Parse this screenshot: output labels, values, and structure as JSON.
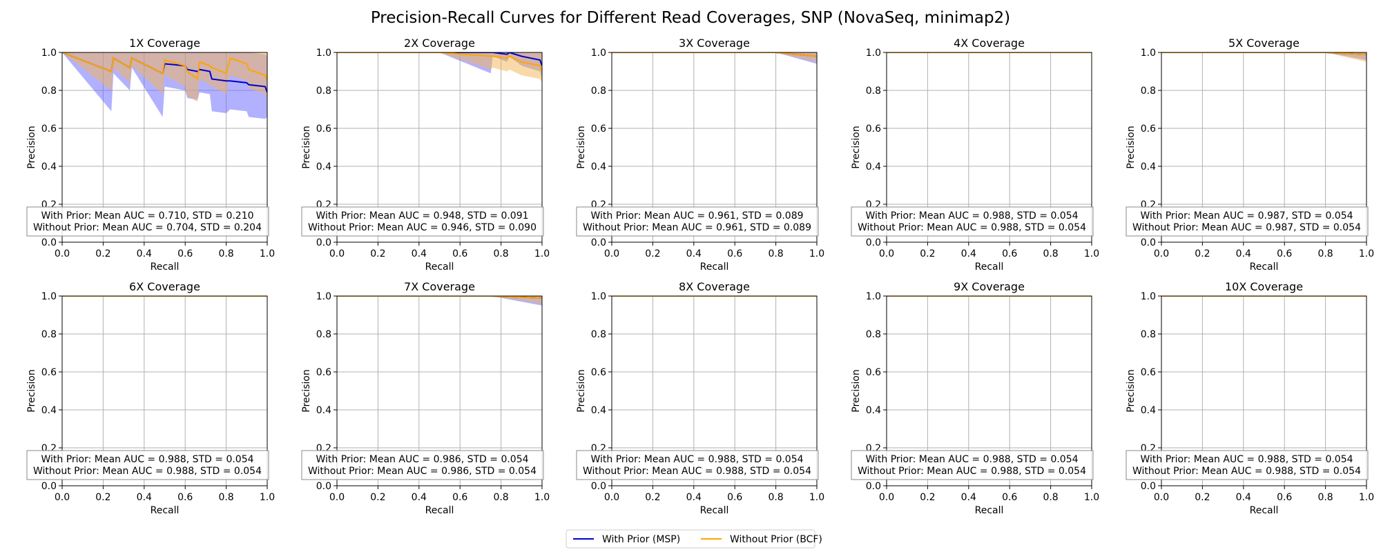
{
  "title": "Precision-Recall Curves for Different Read Coverages, SNP (NovaSeq, minimap2)",
  "legend": {
    "placement": "bottom-center",
    "entries": [
      {
        "label": "With Prior (MSP)",
        "color": "#0000cc"
      },
      {
        "label": "Without Prior (BCF)",
        "color": "#ffa500"
      }
    ]
  },
  "colors": {
    "with_prior": "#0000cc",
    "with_prior_fill": "#6464ff",
    "without_prior": "#ffa500",
    "without_prior_fill": "#f5b454",
    "grid": "#b0b0b0"
  },
  "chart_data": [
    {
      "type": "line",
      "title": "1X Coverage",
      "xlabel": "Recall",
      "ylabel": "Precision",
      "xlim": [
        0,
        1
      ],
      "ylim": [
        0,
        1
      ],
      "grid": true,
      "xticks": [
        "0.0",
        "0.2",
        "0.4",
        "0.6",
        "0.8",
        "1.0"
      ],
      "yticks": [
        "0.0",
        "0.2",
        "0.4",
        "0.6",
        "0.8",
        "1.0"
      ],
      "annotation": [
        "With Prior: Mean AUC = 0.710, STD = 0.210",
        "Without Prior: Mean AUC = 0.704, STD = 0.204"
      ],
      "series": [
        {
          "name": "With Prior (MSP)",
          "x": [
            0,
            0.24,
            0.25,
            0.33,
            0.34,
            0.49,
            0.5,
            0.6,
            0.61,
            0.66,
            0.67,
            0.72,
            0.73,
            0.8,
            0.82,
            0.9,
            0.91,
            0.99,
            1.0
          ],
          "y": [
            1.0,
            0.9,
            0.97,
            0.92,
            0.97,
            0.89,
            0.94,
            0.93,
            0.91,
            0.9,
            0.91,
            0.9,
            0.86,
            0.85,
            0.85,
            0.84,
            0.83,
            0.82,
            0.79
          ],
          "upper": [
            1.0,
            1.0,
            1.0,
            1.0,
            1.0,
            1.0,
            1.0,
            1.0,
            1.0,
            1.0,
            1.0,
            1.0,
            1.0,
            1.0,
            1.0,
            1.0,
            1.0,
            0.99,
            0.98
          ],
          "lower": [
            1.0,
            0.69,
            0.89,
            0.8,
            0.92,
            0.66,
            0.82,
            0.8,
            0.76,
            0.75,
            0.79,
            0.78,
            0.69,
            0.68,
            0.7,
            0.69,
            0.66,
            0.65,
            0.66
          ]
        },
        {
          "name": "Without Prior (BCF)",
          "x": [
            0,
            0.24,
            0.25,
            0.33,
            0.34,
            0.49,
            0.5,
            0.6,
            0.61,
            0.66,
            0.67,
            0.72,
            0.73,
            0.8,
            0.82,
            0.9,
            0.91,
            0.99,
            1.0
          ],
          "y": [
            1.0,
            0.9,
            0.97,
            0.92,
            0.97,
            0.89,
            0.96,
            0.93,
            0.9,
            0.86,
            0.95,
            0.93,
            0.92,
            0.89,
            0.97,
            0.94,
            0.91,
            0.88,
            0.85
          ],
          "upper": [
            1.0,
            1.0,
            1.0,
            1.0,
            1.0,
            1.0,
            1.0,
            1.0,
            1.0,
            1.0,
            1.0,
            1.0,
            1.0,
            1.0,
            1.0,
            1.0,
            1.0,
            1.0,
            1.0
          ],
          "lower": [
            1.0,
            0.8,
            0.92,
            0.84,
            0.93,
            0.78,
            0.88,
            0.82,
            0.77,
            0.74,
            0.86,
            0.83,
            0.82,
            0.78,
            0.88,
            0.85,
            0.81,
            0.78,
            0.74
          ]
        }
      ]
    },
    {
      "type": "line",
      "title": "2X Coverage",
      "xlabel": "Recall",
      "ylabel": "Precision",
      "xlim": [
        0,
        1
      ],
      "ylim": [
        0,
        1
      ],
      "grid": true,
      "xticks": [
        "0.0",
        "0.2",
        "0.4",
        "0.6",
        "0.8",
        "1.0"
      ],
      "yticks": [
        "0.0",
        "0.2",
        "0.4",
        "0.6",
        "0.8",
        "1.0"
      ],
      "annotation": [
        "With Prior: Mean AUC = 0.948, STD = 0.091",
        "Without Prior: Mean AUC = 0.946, STD = 0.090"
      ],
      "series": [
        {
          "name": "With Prior (MSP)",
          "x": [
            0,
            0.5,
            0.75,
            0.76,
            0.83,
            0.84,
            0.9,
            0.99,
            1.0
          ],
          "y": [
            1.0,
            1.0,
            1.0,
            1.0,
            0.99,
            1.0,
            0.98,
            0.96,
            0.93
          ],
          "upper": [
            1.0,
            1.0,
            1.0,
            1.0,
            1.0,
            1.0,
            1.0,
            1.0,
            1.0
          ],
          "lower": [
            1.0,
            1.0,
            0.89,
            0.98,
            0.95,
            0.98,
            0.93,
            0.9,
            0.86
          ]
        },
        {
          "name": "Without Prior (BCF)",
          "x": [
            0,
            0.5,
            0.75,
            0.76,
            0.83,
            0.84,
            0.9,
            0.99,
            1.0
          ],
          "y": [
            1.0,
            1.0,
            0.98,
            0.98,
            0.97,
            0.98,
            0.95,
            0.93,
            0.9
          ],
          "upper": [
            1.0,
            1.0,
            1.0,
            1.0,
            1.0,
            1.0,
            1.0,
            1.0,
            1.0
          ],
          "lower": [
            1.0,
            1.0,
            0.91,
            0.92,
            0.9,
            0.91,
            0.88,
            0.86,
            0.84
          ]
        }
      ]
    },
    {
      "type": "line",
      "title": "3X Coverage",
      "xlabel": "Recall",
      "ylabel": "Precision",
      "xlim": [
        0,
        1
      ],
      "ylim": [
        0,
        1
      ],
      "grid": true,
      "xticks": [
        "0.0",
        "0.2",
        "0.4",
        "0.6",
        "0.8",
        "1.0"
      ],
      "yticks": [
        "0.0",
        "0.2",
        "0.4",
        "0.6",
        "0.8",
        "1.0"
      ],
      "annotation": [
        "With Prior: Mean AUC = 0.961, STD = 0.089",
        "Without Prior: Mean AUC = 0.961, STD = 0.089"
      ],
      "series": [
        {
          "name": "With Prior (MSP)",
          "x": [
            0,
            0.8,
            1.0
          ],
          "y": [
            1.0,
            1.0,
            0.98
          ],
          "upper": [
            1.0,
            1.0,
            1.0
          ],
          "lower": [
            1.0,
            1.0,
            0.94
          ]
        },
        {
          "name": "Without Prior (BCF)",
          "x": [
            0,
            0.8,
            1.0
          ],
          "y": [
            1.0,
            1.0,
            0.98
          ],
          "upper": [
            1.0,
            1.0,
            1.0
          ],
          "lower": [
            1.0,
            1.0,
            0.95
          ]
        }
      ]
    },
    {
      "type": "line",
      "title": "4X Coverage",
      "xlabel": "Recall",
      "ylabel": "Precision",
      "xlim": [
        0,
        1
      ],
      "ylim": [
        0,
        1
      ],
      "grid": true,
      "xticks": [
        "0.0",
        "0.2",
        "0.4",
        "0.6",
        "0.8",
        "1.0"
      ],
      "yticks": [
        "0.0",
        "0.2",
        "0.4",
        "0.6",
        "0.8",
        "1.0"
      ],
      "annotation": [
        "With Prior: Mean AUC = 0.988, STD = 0.054",
        "Without Prior: Mean AUC = 0.988, STD = 0.054"
      ],
      "series": [
        {
          "name": "With Prior (MSP)",
          "x": [
            0,
            1.0
          ],
          "y": [
            1.0,
            1.0
          ],
          "upper": [
            1.0,
            1.0
          ],
          "lower": [
            1.0,
            1.0
          ]
        },
        {
          "name": "Without Prior (BCF)",
          "x": [
            0,
            1.0
          ],
          "y": [
            1.0,
            1.0
          ],
          "upper": [
            1.0,
            1.0
          ],
          "lower": [
            1.0,
            1.0
          ]
        }
      ]
    },
    {
      "type": "line",
      "title": "5X Coverage",
      "xlabel": "Recall",
      "ylabel": "Precision",
      "xlim": [
        0,
        1
      ],
      "ylim": [
        0,
        1
      ],
      "grid": true,
      "xticks": [
        "0.0",
        "0.2",
        "0.4",
        "0.6",
        "0.8",
        "1.0"
      ],
      "yticks": [
        "0.0",
        "0.2",
        "0.4",
        "0.6",
        "0.8",
        "1.0"
      ],
      "annotation": [
        "With Prior: Mean AUC = 0.987, STD = 0.054",
        "Without Prior: Mean AUC = 0.987, STD = 0.054"
      ],
      "series": [
        {
          "name": "With Prior (MSP)",
          "x": [
            0,
            0.8,
            1.0
          ],
          "y": [
            1.0,
            1.0,
            0.99
          ],
          "upper": [
            1.0,
            1.0,
            1.0
          ],
          "lower": [
            1.0,
            1.0,
            0.96
          ]
        },
        {
          "name": "Without Prior (BCF)",
          "x": [
            0,
            0.8,
            1.0
          ],
          "y": [
            1.0,
            1.0,
            0.99
          ],
          "upper": [
            1.0,
            1.0,
            1.0
          ],
          "lower": [
            1.0,
            1.0,
            0.95
          ]
        }
      ]
    },
    {
      "type": "line",
      "title": "6X Coverage",
      "xlabel": "Recall",
      "ylabel": "Precision",
      "xlim": [
        0,
        1
      ],
      "ylim": [
        0,
        1
      ],
      "grid": true,
      "xticks": [
        "0.0",
        "0.2",
        "0.4",
        "0.6",
        "0.8",
        "1.0"
      ],
      "yticks": [
        "0.0",
        "0.2",
        "0.4",
        "0.6",
        "0.8",
        "1.0"
      ],
      "annotation": [
        "With Prior: Mean AUC = 0.988, STD = 0.054",
        "Without Prior: Mean AUC = 0.988, STD = 0.054"
      ],
      "series": [
        {
          "name": "With Prior (MSP)",
          "x": [
            0,
            1.0
          ],
          "y": [
            1.0,
            1.0
          ],
          "upper": [
            1.0,
            1.0
          ],
          "lower": [
            1.0,
            1.0
          ]
        },
        {
          "name": "Without Prior (BCF)",
          "x": [
            0,
            1.0
          ],
          "y": [
            1.0,
            1.0
          ],
          "upper": [
            1.0,
            1.0
          ],
          "lower": [
            1.0,
            1.0
          ]
        }
      ]
    },
    {
      "type": "line",
      "title": "7X Coverage",
      "xlabel": "Recall",
      "ylabel": "Precision",
      "xlim": [
        0,
        1
      ],
      "ylim": [
        0,
        1
      ],
      "grid": true,
      "xticks": [
        "0.0",
        "0.2",
        "0.4",
        "0.6",
        "0.8",
        "1.0"
      ],
      "yticks": [
        "0.0",
        "0.2",
        "0.4",
        "0.6",
        "0.8",
        "1.0"
      ],
      "annotation": [
        "With Prior: Mean AUC = 0.986, STD = 0.054",
        "Without Prior: Mean AUC = 0.986, STD = 0.054"
      ],
      "series": [
        {
          "name": "With Prior (MSP)",
          "x": [
            0,
            0.75,
            1.0
          ],
          "y": [
            1.0,
            1.0,
            0.99
          ],
          "upper": [
            1.0,
            1.0,
            1.0
          ],
          "lower": [
            1.0,
            1.0,
            0.95
          ]
        },
        {
          "name": "Without Prior (BCF)",
          "x": [
            0,
            0.75,
            1.0
          ],
          "y": [
            1.0,
            1.0,
            0.99
          ],
          "upper": [
            1.0,
            1.0,
            1.0
          ],
          "lower": [
            1.0,
            1.0,
            0.96
          ]
        }
      ]
    },
    {
      "type": "line",
      "title": "8X Coverage",
      "xlabel": "Recall",
      "ylabel": "Precision",
      "xlim": [
        0,
        1
      ],
      "ylim": [
        0,
        1
      ],
      "grid": true,
      "xticks": [
        "0.0",
        "0.2",
        "0.4",
        "0.6",
        "0.8",
        "1.0"
      ],
      "yticks": [
        "0.0",
        "0.2",
        "0.4",
        "0.6",
        "0.8",
        "1.0"
      ],
      "annotation": [
        "With Prior: Mean AUC = 0.988, STD = 0.054",
        "Without Prior: Mean AUC = 0.988, STD = 0.054"
      ],
      "series": [
        {
          "name": "With Prior (MSP)",
          "x": [
            0,
            1.0
          ],
          "y": [
            1.0,
            1.0
          ],
          "upper": [
            1.0,
            1.0
          ],
          "lower": [
            1.0,
            1.0
          ]
        },
        {
          "name": "Without Prior (BCF)",
          "x": [
            0,
            1.0
          ],
          "y": [
            1.0,
            1.0
          ],
          "upper": [
            1.0,
            1.0
          ],
          "lower": [
            1.0,
            1.0
          ]
        }
      ]
    },
    {
      "type": "line",
      "title": "9X Coverage",
      "xlabel": "Recall",
      "ylabel": "Precision",
      "xlim": [
        0,
        1
      ],
      "ylim": [
        0,
        1
      ],
      "grid": true,
      "xticks": [
        "0.0",
        "0.2",
        "0.4",
        "0.6",
        "0.8",
        "1.0"
      ],
      "yticks": [
        "0.0",
        "0.2",
        "0.4",
        "0.6",
        "0.8",
        "1.0"
      ],
      "annotation": [
        "With Prior: Mean AUC = 0.988, STD = 0.054",
        "Without Prior: Mean AUC = 0.988, STD = 0.054"
      ],
      "series": [
        {
          "name": "With Prior (MSP)",
          "x": [
            0,
            1.0
          ],
          "y": [
            1.0,
            1.0
          ],
          "upper": [
            1.0,
            1.0
          ],
          "lower": [
            1.0,
            1.0
          ]
        },
        {
          "name": "Without Prior (BCF)",
          "x": [
            0,
            1.0
          ],
          "y": [
            1.0,
            1.0
          ],
          "upper": [
            1.0,
            1.0
          ],
          "lower": [
            1.0,
            1.0
          ]
        }
      ]
    },
    {
      "type": "line",
      "title": "10X Coverage",
      "xlabel": "Recall",
      "ylabel": "Precision",
      "xlim": [
        0,
        1
      ],
      "ylim": [
        0,
        1
      ],
      "grid": true,
      "xticks": [
        "0.0",
        "0.2",
        "0.4",
        "0.6",
        "0.8",
        "1.0"
      ],
      "yticks": [
        "0.0",
        "0.2",
        "0.4",
        "0.6",
        "0.8",
        "1.0"
      ],
      "annotation": [
        "With Prior: Mean AUC = 0.988, STD = 0.054",
        "Without Prior: Mean AUC = 0.988, STD = 0.054"
      ],
      "series": [
        {
          "name": "With Prior (MSP)",
          "x": [
            0,
            1.0
          ],
          "y": [
            1.0,
            1.0
          ],
          "upper": [
            1.0,
            1.0
          ],
          "lower": [
            1.0,
            1.0
          ]
        },
        {
          "name": "Without Prior (BCF)",
          "x": [
            0,
            1.0
          ],
          "y": [
            1.0,
            1.0
          ],
          "upper": [
            1.0,
            1.0
          ],
          "lower": [
            1.0,
            1.0
          ]
        }
      ]
    }
  ]
}
